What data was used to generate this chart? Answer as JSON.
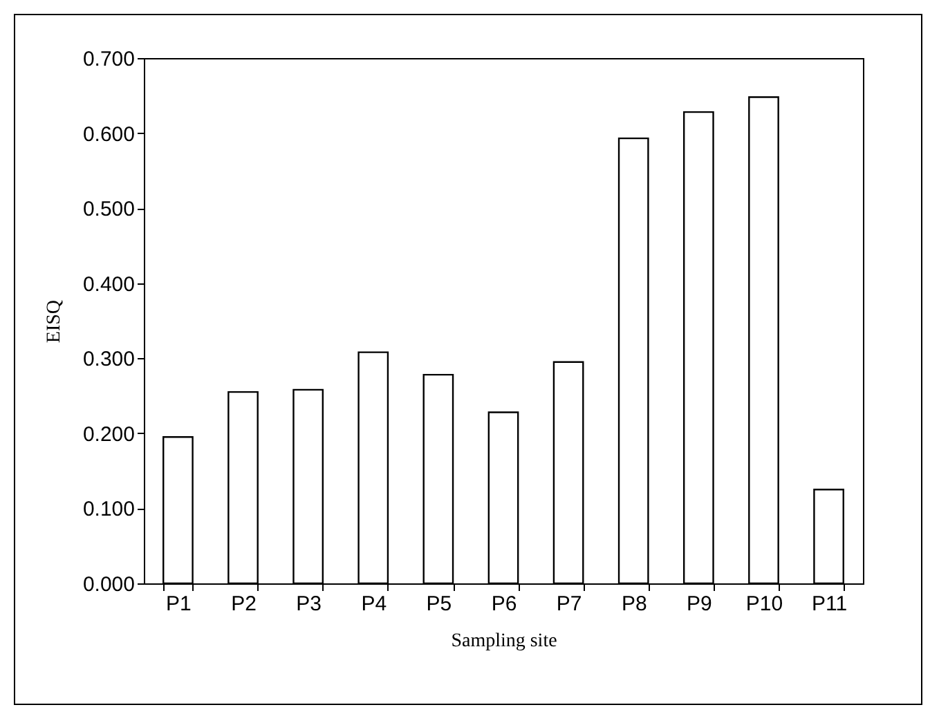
{
  "chart_data": {
    "type": "bar",
    "xlabel": "Sampling site",
    "ylabel": "EISQ",
    "categories": [
      "P1",
      "P2",
      "P3",
      "P4",
      "P5",
      "P6",
      "P7",
      "P8",
      "P9",
      "P10",
      "P11"
    ],
    "values": [
      0.195,
      0.255,
      0.258,
      0.308,
      0.278,
      0.228,
      0.295,
      0.593,
      0.628,
      0.648,
      0.125
    ],
    "color": "#ffffff",
    "ylim": [
      0,
      0.7
    ],
    "yticks": [
      {
        "value": 0,
        "label": "0.000"
      },
      {
        "value": 0.1,
        "label": "0.100"
      },
      {
        "value": 0.2,
        "label": "0.200"
      },
      {
        "value": 0.3,
        "label": "0.300"
      },
      {
        "value": 0.4,
        "label": "0.400"
      },
      {
        "value": 0.5,
        "label": "0.500"
      },
      {
        "value": 0.6,
        "label": "0.600"
      },
      {
        "value": 0.7,
        "label": "0.700"
      }
    ],
    "grid": false
  }
}
